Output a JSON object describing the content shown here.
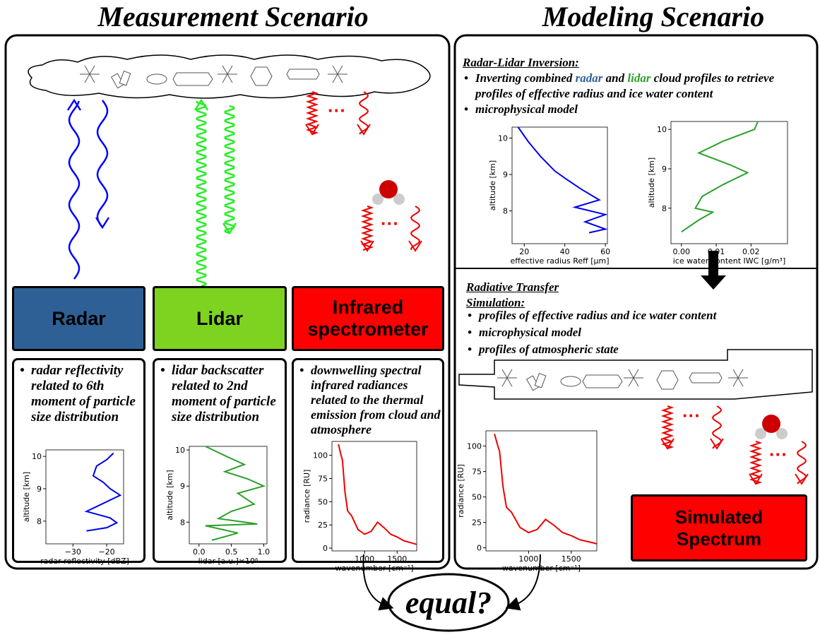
{
  "titles": {
    "measurement": "Measurement Scenario",
    "modeling": "Modeling Scenario"
  },
  "instruments": [
    "Radar",
    "Lidar",
    "Infrared spectrometer"
  ],
  "descriptions": [
    "radar reflectivity related to 6th moment of particle size distribution",
    "lidar backscatter related to 2nd moment of particle size distribution",
    "downwelling spectral infrared radiances related to the thermal emission from cloud and atmosphere"
  ],
  "inversion": {
    "heading": "Radar-Lidar Inversion:",
    "bullets": [
      [
        "Inverting combined ",
        "radar",
        " and ",
        "lidar",
        " cloud profiles to retrieve profiles of effective radius and ice water content"
      ],
      [
        "microphysical model"
      ]
    ]
  },
  "simulation": {
    "heading": "Radiative Transfer Simulation:",
    "bullets": [
      "profiles of effective radius and ice water content",
      "microphysical model",
      "profiles of atmospheric state"
    ]
  },
  "result": "Simulated Spectrum",
  "question": "equal?",
  "plots": [
    {
      "xlabel": "radar reflectivity  [dBZ]",
      "ylabel": "altitude [km]",
      "color": "#0000ee",
      "xlim": [
        -38,
        -15
      ],
      "ylim": [
        7.3,
        10.2
      ],
      "xticks": [
        {
          "value": -30,
          "label": "−30"
        },
        {
          "value": -20,
          "label": "−20"
        }
      ],
      "yticks": [
        8,
        9,
        10
      ],
      "x": [
        -18,
        -20,
        -23,
        -24,
        -21,
        -19,
        -16,
        -20,
        -23,
        -26,
        -19,
        -17,
        -20,
        -26
      ],
      "y": [
        10.1,
        9.9,
        9.7,
        9.4,
        9.2,
        9.0,
        8.8,
        8.6,
        8.45,
        8.3,
        8.1,
        7.95,
        7.8,
        7.7
      ]
    },
    {
      "xlabel": "lidar [a.u.]×10⁶",
      "ylabel": "altitude [km]",
      "color": "#2ca02c",
      "xlim": [
        -0.15,
        1.05
      ],
      "ylim": [
        7.4,
        10.1
      ],
      "xticks": [
        {
          "value": 0,
          "label": "0.0"
        },
        {
          "value": 0.5,
          "label": "0.5"
        },
        {
          "value": 1,
          "label": "1.0"
        }
      ],
      "yticks": [
        8,
        9,
        10
      ],
      "x": [
        0.1,
        0.45,
        0.7,
        0.4,
        0.75,
        1.0,
        0.6,
        0.85,
        0.5,
        0.3,
        0.9,
        0.1,
        0.6,
        0.2
      ],
      "y": [
        10.1,
        9.8,
        9.6,
        9.4,
        9.2,
        9.0,
        8.8,
        8.5,
        8.3,
        8.1,
        7.95,
        7.9,
        7.7,
        7.5
      ]
    },
    {
      "xlabel": "wavenumber [cm⁻¹]",
      "ylabel": "radiance [RU]",
      "color": "#ee0000",
      "xlim": [
        500,
        1800
      ],
      "ylim": [
        -3,
        115
      ],
      "xticks": [
        1000,
        1500
      ],
      "yticks": [
        0,
        25,
        50,
        75,
        100
      ],
      "x": [
        600,
        640,
        660,
        700,
        740,
        800,
        900,
        1000,
        1100,
        1200,
        1300,
        1400,
        1500,
        1600,
        1700,
        1800
      ],
      "y": [
        112,
        100,
        95,
        60,
        40,
        35,
        20,
        15,
        18,
        28,
        22,
        15,
        12,
        8,
        6,
        4
      ]
    },
    {
      "xlabel": "effective radius Reff [μm]",
      "ylabel": "altitude [km]",
      "color": "#0000ee",
      "xlim": [
        14,
        61
      ],
      "ylim": [
        7.1,
        10.3
      ],
      "xticks": [
        20,
        40,
        60
      ],
      "yticks": [
        8,
        9,
        10
      ],
      "x": [
        17,
        22,
        28,
        35,
        40,
        48,
        57,
        45,
        60,
        50,
        60,
        52
      ],
      "y": [
        10.3,
        9.9,
        9.5,
        9.1,
        8.9,
        8.6,
        8.3,
        8.1,
        7.9,
        7.7,
        7.5,
        7.4
      ]
    },
    {
      "xlabel": "ice water content IWC [g/m³]",
      "ylabel": "altitude [km]",
      "color": "#2ca02c",
      "xlim": [
        -0.003,
        0.0305
      ],
      "ylim": [
        7.1,
        10.2
      ],
      "xticks": [
        {
          "value": 0,
          "label": "0.00"
        },
        {
          "value": 0.01,
          "label": "0.01"
        },
        {
          "value": 0.02,
          "label": "0.02"
        }
      ],
      "yticks": [
        8,
        9,
        10
      ],
      "x": [
        0.022,
        0.021,
        0.012,
        0.005,
        0.014,
        0.019,
        0.012,
        0.006,
        0.004,
        0.009,
        0.005,
        0.0
      ],
      "y": [
        10.2,
        10.0,
        9.7,
        9.4,
        9.1,
        8.9,
        8.6,
        8.3,
        8.0,
        7.9,
        7.7,
        7.4
      ]
    },
    {
      "xlabel": "wavenumber [cm⁻¹]",
      "ylabel": "radiance [RU]",
      "color": "#ee0000",
      "xlim": [
        500,
        1800
      ],
      "ylim": [
        -3,
        115
      ],
      "xticks": [
        1000,
        1500
      ],
      "yticks": [
        0,
        25,
        50,
        75,
        100
      ],
      "x": [
        600,
        640,
        660,
        700,
        740,
        800,
        900,
        1000,
        1100,
        1200,
        1300,
        1400,
        1500,
        1600,
        1700,
        1800
      ],
      "y": [
        112,
        100,
        95,
        60,
        40,
        35,
        20,
        15,
        18,
        28,
        22,
        15,
        12,
        8,
        6,
        4
      ]
    }
  ]
}
